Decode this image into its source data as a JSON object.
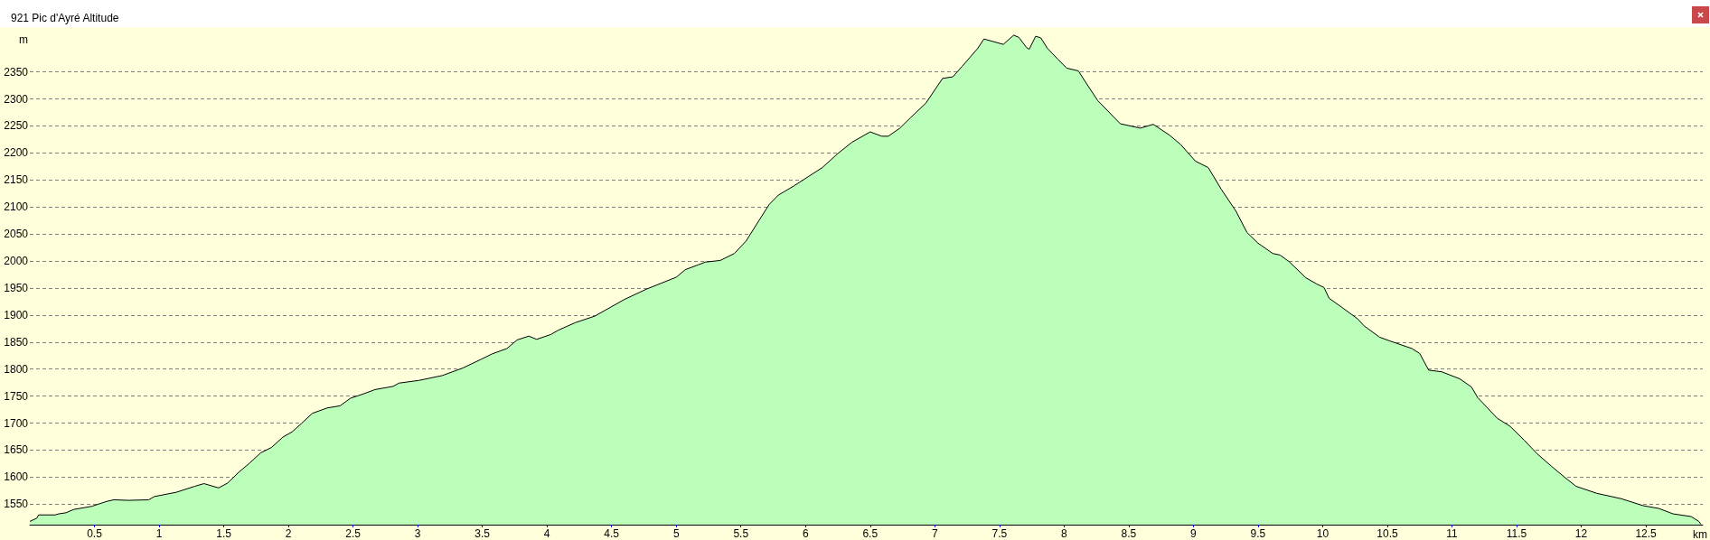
{
  "chart_data": {
    "type": "area",
    "title": "921 Pic d'Ayré Altitude",
    "xlabel": "km",
    "ylabel": "m",
    "x": [
      0,
      0.054,
      0.068,
      0.196,
      0.224,
      0.28,
      0.338,
      0.48,
      0.594,
      0.65,
      0.764,
      0.92,
      0.963,
      1.134,
      1.276,
      1.347,
      1.46,
      1.53,
      1.616,
      1.7,
      1.786,
      1.87,
      1.957,
      2.03,
      2.1,
      2.185,
      2.3,
      2.4,
      2.48,
      2.58,
      2.67,
      2.81,
      2.855,
      3.01,
      3.19,
      3.35,
      3.49,
      3.575,
      3.69,
      3.77,
      3.86,
      3.92,
      4.03,
      4.088,
      4.22,
      4.37,
      4.6,
      4.77,
      5.0,
      5.07,
      5.17,
      5.225,
      5.34,
      5.45,
      5.54,
      5.64,
      5.72,
      5.79,
      5.91,
      6.02,
      6.13,
      6.25,
      6.36,
      6.5,
      6.59,
      6.64,
      6.73,
      6.815,
      6.93,
      7.06,
      7.14,
      7.21,
      7.33,
      7.38,
      7.53,
      7.61,
      7.65,
      7.71,
      7.73,
      7.78,
      7.82,
      7.87,
      7.95,
      8.02,
      8.11,
      8.18,
      8.26,
      8.435,
      8.59,
      8.69,
      8.815,
      8.9,
      9.015,
      9.115,
      9.215,
      9.33,
      9.414,
      9.5,
      9.614,
      9.67,
      9.74,
      9.87,
      9.95,
      10.01,
      10.05,
      10.15,
      10.27,
      10.32,
      10.44,
      10.52,
      10.69,
      10.75,
      10.82,
      10.92,
      11.06,
      11.15,
      11.2,
      11.35,
      11.45,
      11.56,
      11.66,
      11.77,
      11.87,
      11.96,
      12.12,
      12.31,
      12.48,
      12.6,
      12.71,
      12.85,
      12.91,
      12.925
    ],
    "values": [
      1518,
      1524,
      1530,
      1530,
      1532,
      1534,
      1540,
      1546,
      1555,
      1558,
      1557,
      1558,
      1564,
      1572,
      1583,
      1588,
      1580,
      1589,
      1609,
      1626,
      1645,
      1655,
      1674,
      1684,
      1699,
      1718,
      1728,
      1732,
      1746,
      1754,
      1762,
      1768,
      1774,
      1779,
      1788,
      1802,
      1818,
      1828,
      1838,
      1854,
      1861,
      1855,
      1864,
      1872,
      1886,
      1898,
      1929,
      1948,
      1970,
      1984,
      1993,
      1998,
      2001,
      2014,
      2037,
      2075,
      2105,
      2122,
      2139,
      2156,
      2173,
      2199,
      2220,
      2239,
      2231,
      2231,
      2246,
      2266,
      2292,
      2338,
      2341,
      2360,
      2393,
      2411,
      2401,
      2418,
      2414,
      2395,
      2392,
      2416,
      2413,
      2394,
      2374,
      2357,
      2352,
      2326,
      2297,
      2254,
      2246,
      2253,
      2233,
      2216,
      2185,
      2173,
      2133,
      2092,
      2053,
      2033,
      2014,
      2011,
      1999,
      1969,
      1958,
      1951,
      1931,
      1914,
      1893,
      1880,
      1859,
      1852,
      1838,
      1829,
      1798,
      1795,
      1782,
      1767,
      1747,
      1709,
      1694,
      1668,
      1643,
      1620,
      1600,
      1583,
      1570,
      1560,
      1547,
      1542,
      1532,
      1527,
      1518,
      1513
    ],
    "color": "#bbffbb",
    "xlim": [
      0,
      12.94
    ],
    "ylim": [
      1512,
      2433
    ],
    "xticks": [
      0.5,
      1,
      1.5,
      2,
      2.5,
      3,
      3.5,
      4,
      4.5,
      5,
      5.5,
      6,
      6.5,
      7,
      7.5,
      8,
      8.5,
      9,
      9.5,
      10,
      10.5,
      11,
      11.5,
      12,
      12.5
    ],
    "yticks": [
      1550,
      1600,
      1650,
      1700,
      1750,
      1800,
      1850,
      1900,
      1950,
      2000,
      2050,
      2100,
      2150,
      2200,
      2250,
      2300,
      2350
    ],
    "grid": "y",
    "marker": "none"
  }
}
